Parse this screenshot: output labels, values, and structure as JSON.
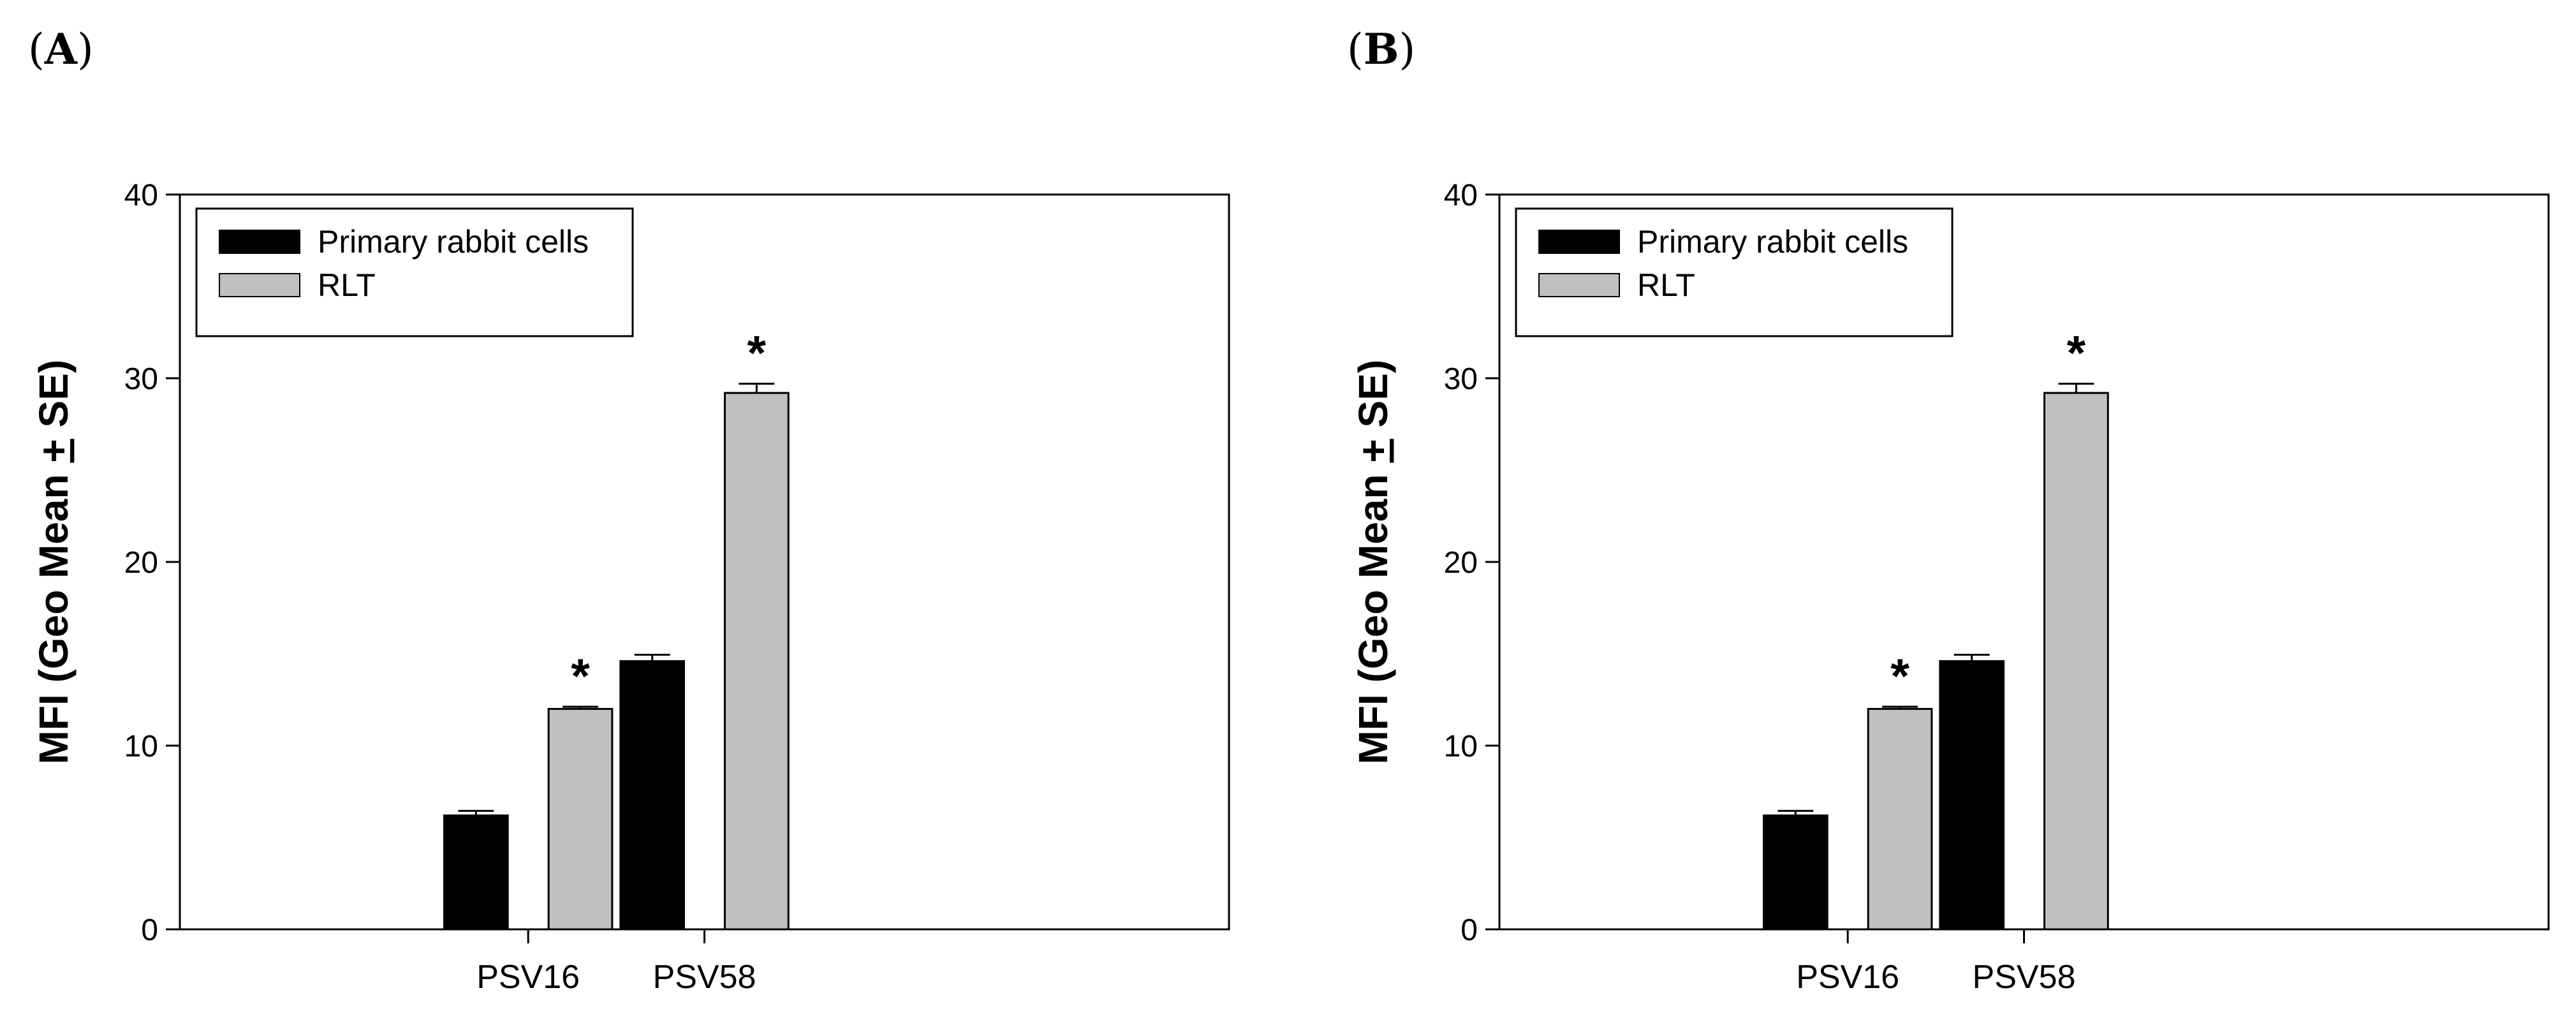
{
  "chart_data": [
    {
      "panel_label": "(A)",
      "panel_paren_open": "(",
      "panel_letter": "A",
      "panel_paren_close": ")",
      "type": "bar",
      "title": "",
      "xlabel": "",
      "ylabel_parts": {
        "before": "MFI (Geo Mean ",
        "pm": "+",
        "after": " SE)"
      },
      "ylabel": "MFI (Geo Mean + SE)",
      "ylim": [
        0,
        40
      ],
      "yticks": [
        0,
        10,
        20,
        30,
        40
      ],
      "categories": [
        "PSV16",
        "PSV58"
      ],
      "legend_position": "top-left",
      "series": [
        {
          "name": "Primary rabbit cells",
          "color": "#000000",
          "values": [
            6.2,
            14.6
          ],
          "errors": [
            0.25,
            0.35
          ]
        },
        {
          "name": "RLT",
          "color": "#c0c0c0",
          "values": [
            12.0,
            29.2
          ],
          "errors": [
            0.12,
            0.5
          ]
        }
      ],
      "annotations": [
        {
          "text": "*",
          "series": 1,
          "category": 0
        },
        {
          "text": "*",
          "series": 1,
          "category": 1
        }
      ]
    },
    {
      "panel_label": "(B)",
      "panel_paren_open": "(",
      "panel_letter": "B",
      "panel_paren_close": ")",
      "type": "bar",
      "title": "",
      "xlabel": "",
      "ylabel_parts": {
        "before": "MFI (Geo Mean ",
        "pm": "+",
        "after": " SE)"
      },
      "ylabel": "MFI (Geo Mean + SE)",
      "ylim": [
        0,
        40
      ],
      "yticks": [
        0,
        10,
        20,
        30,
        40
      ],
      "categories": [
        "PSV16",
        "PSV58"
      ],
      "legend_position": "top-left",
      "series": [
        {
          "name": "Primary rabbit cells",
          "color": "#000000",
          "values": [
            6.2,
            14.6
          ],
          "errors": [
            0.25,
            0.35
          ]
        },
        {
          "name": "RLT",
          "color": "#c0c0c0",
          "values": [
            12.0,
            29.2
          ],
          "errors": [
            0.12,
            0.5
          ]
        }
      ],
      "annotations": [
        {
          "text": "*",
          "series": 1,
          "category": 0
        },
        {
          "text": "*",
          "series": 1,
          "category": 1
        }
      ]
    }
  ]
}
